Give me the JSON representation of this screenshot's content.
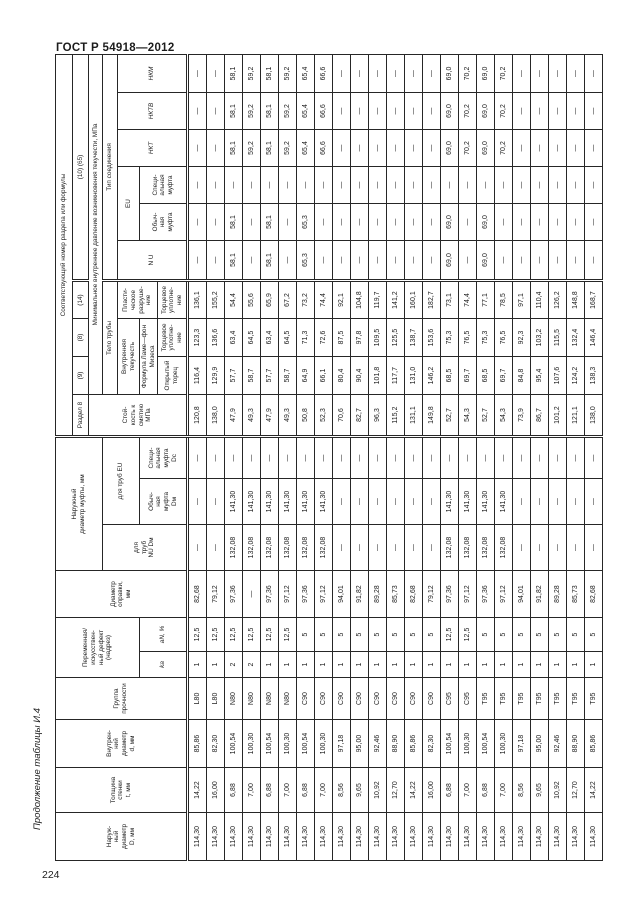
{
  "page": {
    "standard_code": "ГОСТ Р 54918—2012",
    "page_number": "224",
    "table_caption": "Продолжение таблицы И.4"
  },
  "table": {
    "header": {
      "outer_diameter": "Наруж-\nный\nдиаметр\nD, мм",
      "wall_thickness": "Толщина\nстенки\nt, мм",
      "inner_diameter": "Внутрен-\nний\nдиаметр\nd, мм",
      "strength_group": "Группа\nпрочности",
      "variable_defect": "Переменная/\nискусствен-\nный дефект\n(надрез)",
      "k_factor": "kа",
      "notch_depth": "аN, %",
      "mandrel_diameter": "Диаметр\nоправки,\nмм",
      "coupling_od_group": "Наружный\nдиаметр муфты, мм",
      "nu_pipes": "для\nтруб\nNU Dм",
      "eu_pipes": "для труб EU",
      "regular_coupling_d": "Обыч-\nная\nмуфта\nDм",
      "special_coupling_d": "Специ-\nальная\nмуфта\nDс",
      "corresponding_number": "Соответствующий номер раздела или формулы",
      "section_8": "Раздел 8",
      "ref_9": "(9)",
      "ref_8": "(8)",
      "ref_14": "(14)",
      "ref_10_65": "(10) (65)",
      "collapse_resistance": "Стой-\nкость к\nсмятию\nМПа",
      "min_internal_pressure": "Минимальное внутреннее давление возникновения текучести, МПа",
      "pipe_body": "Тело трубы",
      "internal_yield": "Внутренняя\nтекучесть",
      "lame_formula": "Формула Ламе—фон\nМизеса",
      "open_end": "Открытый\nторец",
      "end_seal": "Торцевое\nуплотне-\nние",
      "plastic_failure": "Пласти-\nческое\nразруше-\nние",
      "connection_type": "Тип соединения",
      "nu": "N U",
      "eu": "EU",
      "regular_coupling": "Обыч-\nная\nмуфта",
      "special_coupling": "Специ-\nальная\nмуфта",
      "nkt": "НКТ",
      "nktv": "НКТВ",
      "nkm": "НКМ"
    },
    "rows": [
      [
        "114,30",
        "14,22",
        "85,86",
        "L80",
        "1",
        "12,5",
        "82,68",
        "—",
        "—",
        "—",
        "120,8",
        "116,4",
        "123,3",
        "136,1",
        "—",
        "—",
        "—",
        "—",
        "—",
        "—"
      ],
      [
        "114,30",
        "16,00",
        "82,30",
        "L80",
        "1",
        "12,5",
        "79,12",
        "—",
        "—",
        "—",
        "138,0",
        "129,9",
        "136,6",
        "155,2",
        "—",
        "—",
        "—",
        "—",
        "—",
        "—"
      ],
      [
        "114,30",
        "6,88",
        "100,54",
        "N80",
        "2",
        "12,5",
        "97,36",
        "132,08",
        "141,30",
        "—",
        "47,9",
        "57,7",
        "63,4",
        "54,4",
        "58,1",
        "58,1",
        "—",
        "58,1",
        "58,1",
        "58,1"
      ],
      [
        "114,30",
        "7,00",
        "100,30",
        "N80",
        "2",
        "12,5",
        "—",
        "132,08",
        "141,30",
        "—",
        "49,3",
        "58,7",
        "64,5",
        "55,6",
        "—",
        "—",
        "—",
        "59,2",
        "59,2",
        "59,2"
      ],
      [
        "114,30",
        "6,88",
        "100,54",
        "N80",
        "1",
        "12,5",
        "97,36",
        "132,08",
        "141,30",
        "—",
        "47,9",
        "57,7",
        "63,4",
        "65,9",
        "58,1",
        "58,1",
        "—",
        "58,1",
        "58,1",
        "58,1"
      ],
      [
        "114,30",
        "7,00",
        "100,30",
        "N80",
        "1",
        "12,5",
        "97,12",
        "132,08",
        "141,30",
        "—",
        "49,3",
        "58,7",
        "64,5",
        "67,2",
        "—",
        "—",
        "—",
        "59,2",
        "59,2",
        "59,2"
      ],
      [
        "114,30",
        "6,88",
        "100,54",
        "C90",
        "1",
        "5",
        "97,36",
        "132,08",
        "141,30",
        "—",
        "50,8",
        "64,9",
        "71,3",
        "73,2",
        "65,3",
        "65,3",
        "—",
        "65,4",
        "65,4",
        "65,4"
      ],
      [
        "114,30",
        "7,00",
        "100,30",
        "C90",
        "1",
        "5",
        "97,12",
        "132,08",
        "141,30",
        "—",
        "52,3",
        "66,1",
        "72,6",
        "74,4",
        "—",
        "—",
        "—",
        "66,6",
        "66,6",
        "66,6"
      ],
      [
        "114,30",
        "8,56",
        "97,18",
        "C90",
        "1",
        "5",
        "94,01",
        "—",
        "—",
        "—",
        "70,6",
        "80,4",
        "87,5",
        "92,1",
        "—",
        "—",
        "—",
        "—",
        "—",
        "—"
      ],
      [
        "114,30",
        "9,65",
        "95,00",
        "C90",
        "1",
        "5",
        "91,82",
        "—",
        "—",
        "—",
        "82,7",
        "90,4",
        "97,8",
        "104,8",
        "—",
        "—",
        "—",
        "—",
        "—",
        "—"
      ],
      [
        "114,30",
        "10,92",
        "92,46",
        "C90",
        "1",
        "5",
        "89,28",
        "—",
        "—",
        "—",
        "96,3",
        "101,8",
        "109,5",
        "119,7",
        "—",
        "—",
        "—",
        "—",
        "—",
        "—"
      ],
      [
        "114,30",
        "12,70",
        "88,90",
        "C90",
        "1",
        "5",
        "85,73",
        "—",
        "—",
        "—",
        "115,2",
        "117,7",
        "125,5",
        "141,2",
        "—",
        "—",
        "—",
        "—",
        "—",
        "—"
      ],
      [
        "114,30",
        "14,22",
        "85,86",
        "C90",
        "1",
        "5",
        "82,68",
        "—",
        "—",
        "—",
        "131,1",
        "131,0",
        "138,7",
        "160,1",
        "—",
        "—",
        "—",
        "—",
        "—",
        "—"
      ],
      [
        "114,30",
        "16,00",
        "82,30",
        "C90",
        "1",
        "5",
        "79,12",
        "—",
        "—",
        "—",
        "149,8",
        "146,2",
        "153,6",
        "182,7",
        "—",
        "—",
        "—",
        "—",
        "—",
        "—"
      ],
      [
        "114,30",
        "6,88",
        "100,54",
        "C95",
        "1",
        "12,5",
        "97,36",
        "132,08",
        "141,30",
        "—",
        "52,7",
        "68,5",
        "75,3",
        "73,1",
        "69,0",
        "69,0",
        "—",
        "69,0",
        "69,0",
        "69,0"
      ],
      [
        "114,30",
        "7,00",
        "100,30",
        "C95",
        "1",
        "12,5",
        "97,12",
        "132,08",
        "141,30",
        "—",
        "54,3",
        "69,7",
        "76,5",
        "74,4",
        "—",
        "—",
        "—",
        "70,2",
        "70,2",
        "70,2"
      ],
      [
        "114,30",
        "6,88",
        "100,54",
        "T95",
        "1",
        "5",
        "97,36",
        "132,08",
        "141,30",
        "—",
        "52,7",
        "68,5",
        "75,3",
        "77,1",
        "69,0",
        "69,0",
        "—",
        "69,0",
        "69,0",
        "69,0"
      ],
      [
        "114,30",
        "7,00",
        "100,30",
        "T95",
        "1",
        "5",
        "97,12",
        "132,08",
        "141,30",
        "—",
        "54,3",
        "69,7",
        "76,5",
        "78,5",
        "—",
        "—",
        "—",
        "70,2",
        "70,2",
        "70,2"
      ],
      [
        "114,30",
        "8,56",
        "97,18",
        "T95",
        "1",
        "5",
        "94,01",
        "—",
        "—",
        "—",
        "73,9",
        "84,8",
        "92,3",
        "97,1",
        "—",
        "—",
        "—",
        "—",
        "—",
        "—"
      ],
      [
        "114,30",
        "9,65",
        "95,00",
        "T95",
        "1",
        "5",
        "91,82",
        "—",
        "—",
        "—",
        "86,7",
        "95,4",
        "103,2",
        "110,4",
        "—",
        "—",
        "—",
        "—",
        "—",
        "—"
      ],
      [
        "114,30",
        "10,92",
        "92,46",
        "T95",
        "1",
        "5",
        "89,28",
        "—",
        "—",
        "—",
        "101,2",
        "107,6",
        "115,5",
        "126,2",
        "—",
        "—",
        "—",
        "—",
        "—",
        "—"
      ],
      [
        "114,30",
        "12,70",
        "88,90",
        "T95",
        "1",
        "5",
        "85,73",
        "—",
        "—",
        "—",
        "121,1",
        "124,2",
        "132,4",
        "148,8",
        "—",
        "—",
        "—",
        "—",
        "—",
        "—"
      ],
      [
        "114,30",
        "14,22",
        "85,86",
        "T95",
        "1",
        "5",
        "82,68",
        "—",
        "—",
        "—",
        "138,0",
        "138,3",
        "146,4",
        "168,7",
        "—",
        "—",
        "—",
        "—",
        "—",
        "—"
      ]
    ]
  }
}
